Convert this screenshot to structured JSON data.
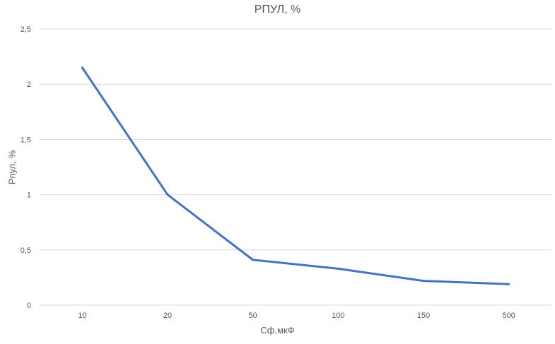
{
  "chart_data": {
    "type": "line",
    "title": "РПУЛ, %",
    "xlabel": "Сф,мкФ",
    "ylabel": "Рпул, %",
    "categories": [
      "10",
      "20",
      "50",
      "100",
      "150",
      "500"
    ],
    "series": [
      {
        "values": [
          2.15,
          1.0,
          0.41,
          0.33,
          0.22,
          0.19
        ]
      }
    ],
    "yticks": [
      "0",
      "0,5",
      "1",
      "1,5",
      "2",
      "2,5"
    ],
    "ylim": [
      0,
      2.5
    ],
    "grid": true,
    "legend": "none",
    "colors": {
      "line": "#4472C4",
      "grid": "#d9d9d9",
      "text": "#595959"
    }
  }
}
